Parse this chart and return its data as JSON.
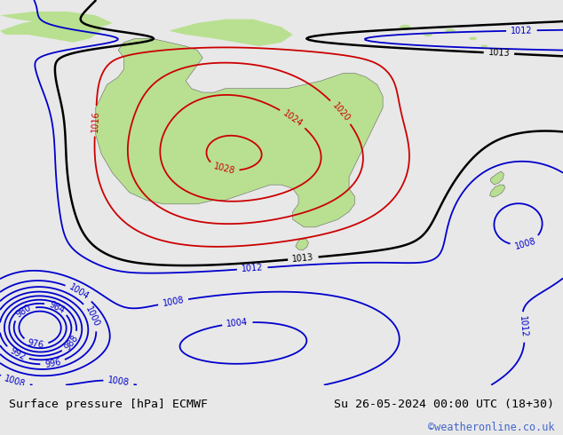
{
  "title_left": "Surface pressure [hPa] ECMWF",
  "title_right": "Su 26-05-2024 00:00 UTC (18+30)",
  "watermark": "©weatheronline.co.uk",
  "ocean_color": "#b0c8e0",
  "land_color": "#b8e090",
  "footer_bg": "#e8e8e8",
  "footer_text_color": "#000000",
  "watermark_color": "#4466cc",
  "figsize": [
    6.34,
    4.9
  ],
  "dpi": 100,
  "contour_blue_color": "#0000cc",
  "contour_red_color": "#cc0000",
  "contour_black_color": "#000000",
  "blue_levels": [
    976,
    980,
    984,
    988,
    992,
    996,
    1000,
    1004,
    1008,
    1012
  ],
  "black_levels": [
    1013
  ],
  "red_levels": [
    1016,
    1020,
    1024,
    1028
  ]
}
